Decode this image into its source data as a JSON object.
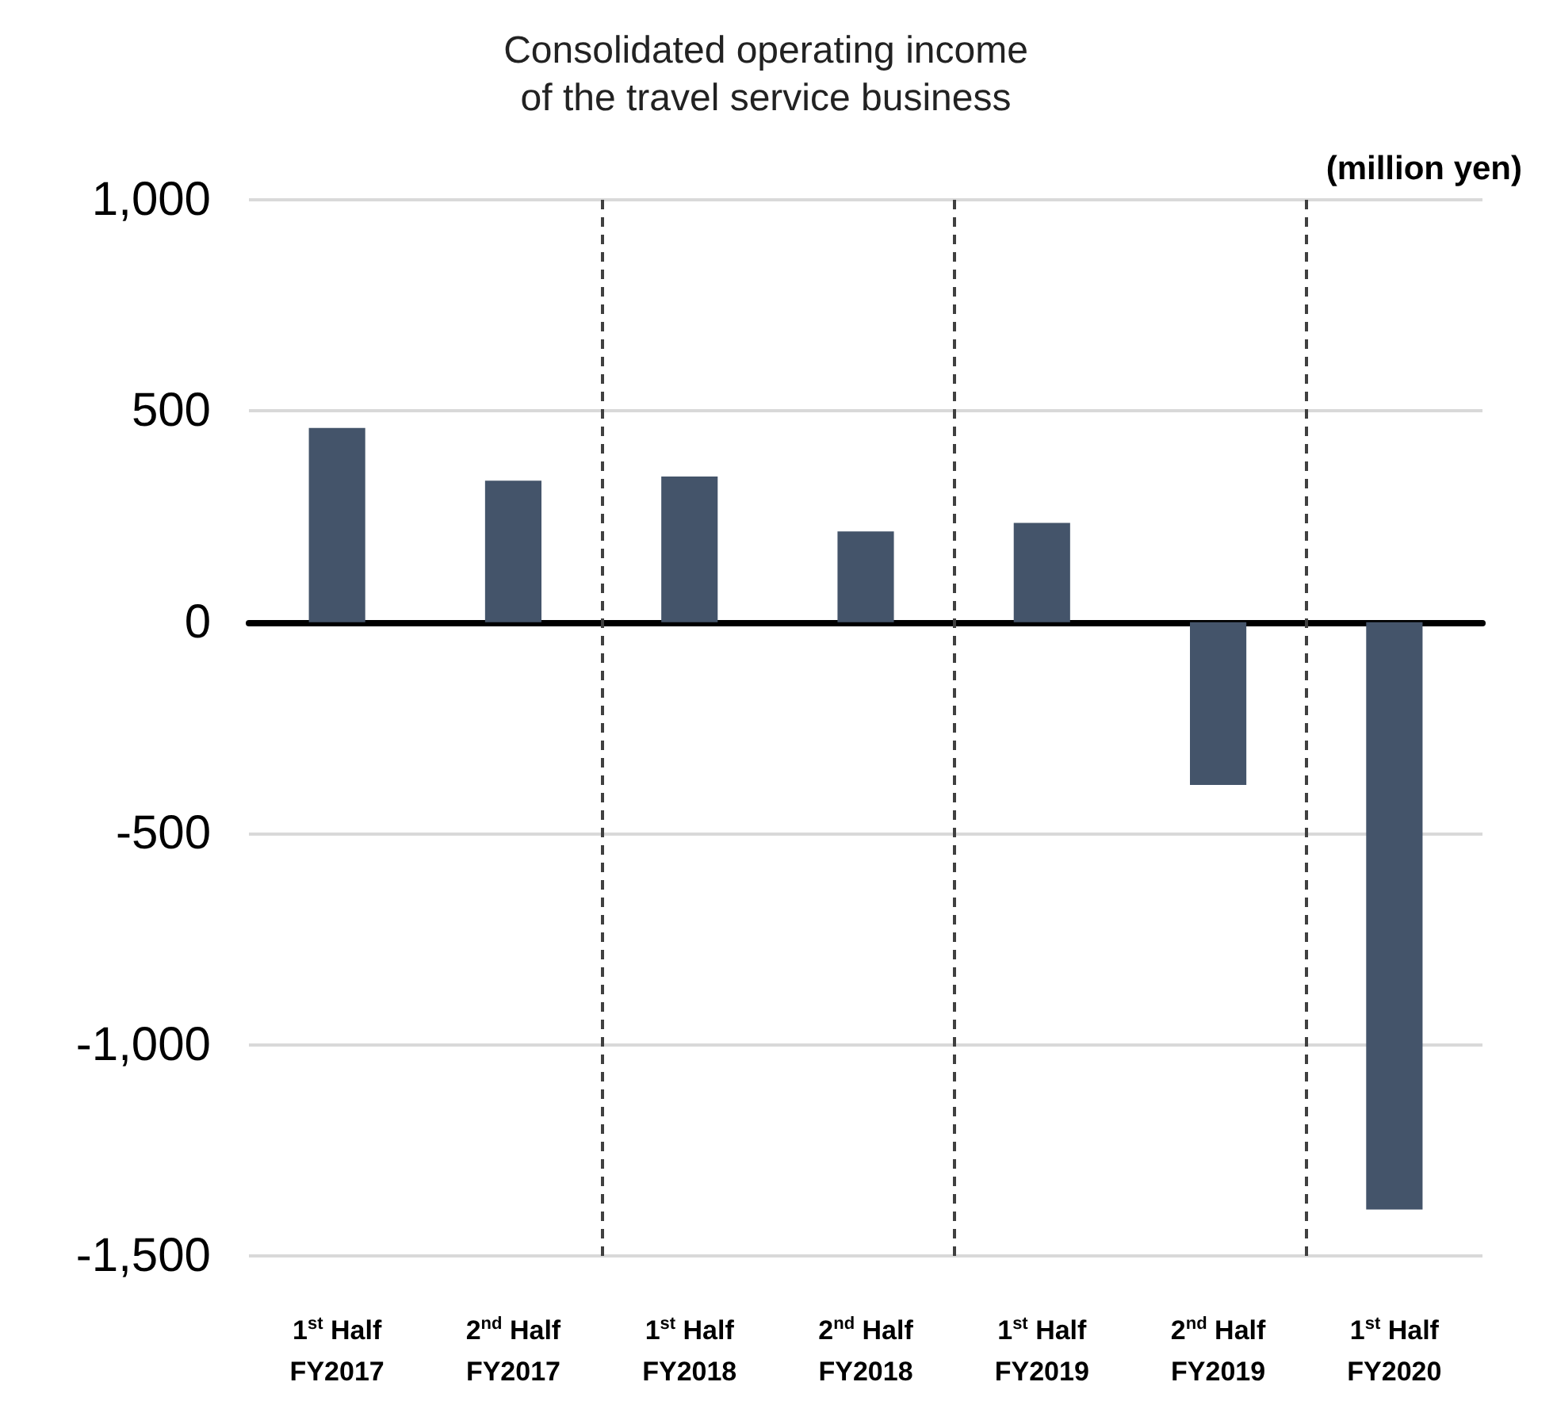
{
  "chart_data": {
    "type": "bar",
    "title": "Consolidated operating income\nof the travel service business",
    "ylabel": "(million yen)",
    "categories": [
      "1$^{st}$ Half\nFY2017",
      "2$^{nd}$ Half\nFY2017",
      "1$^{st}$ Half\nFY2018",
      "2$^{nd}$ Half\nFY2018",
      "1$^{st}$ Half\nFY2019",
      "2$^{nd}$ Half\nFY2019",
      "1$^{st}$ Half\nFY2020"
    ],
    "values": [
      460,
      335,
      345,
      215,
      235,
      -385,
      -1390
    ],
    "color": "#44546a",
    "ylim": [
      -1500,
      1000
    ],
    "yticks": [
      {
        "value": -1500,
        "label": "-1,500"
      },
      {
        "value": -1000,
        "label": "-1,000"
      },
      -500,
      0,
      500,
      {
        "value": 1000,
        "label": "1,000"
      }
    ],
    "grid": "y"
  }
}
